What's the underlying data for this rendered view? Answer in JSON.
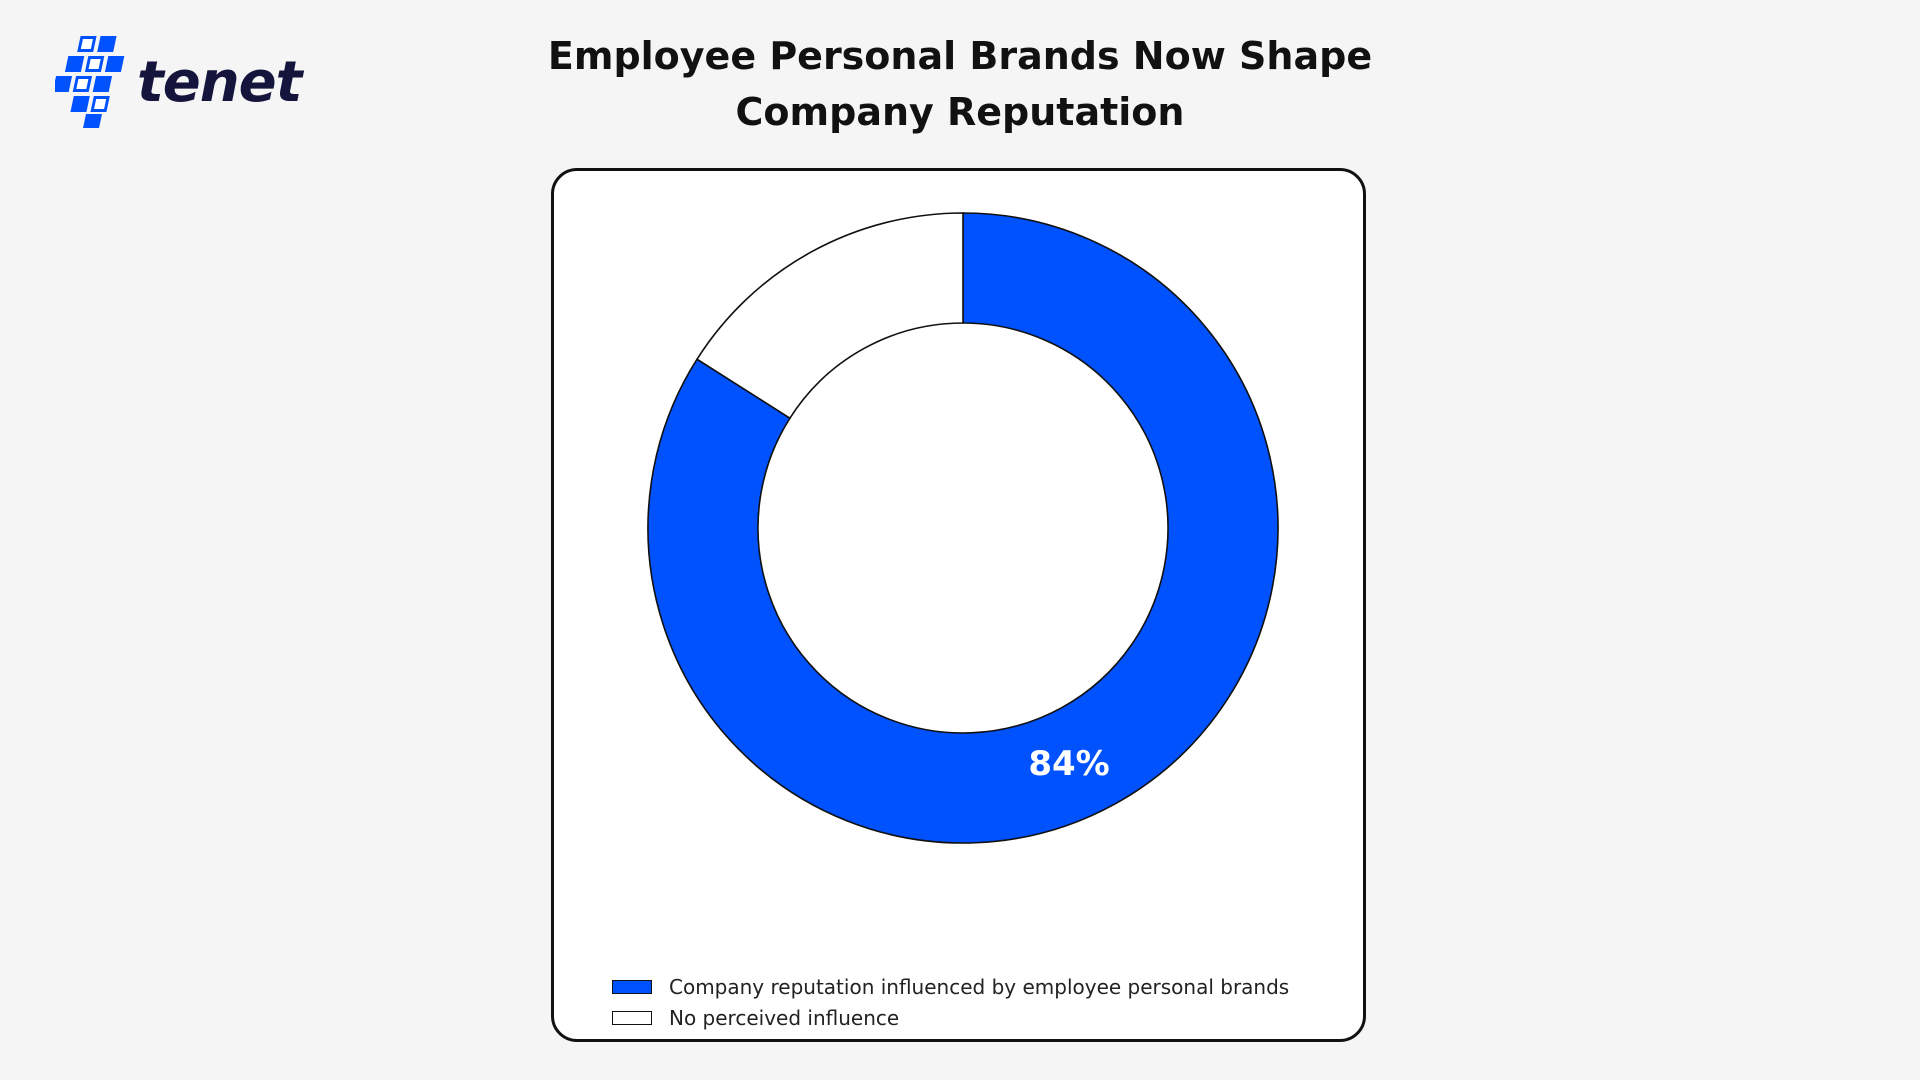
{
  "brand": {
    "logo_text": "tenet",
    "accent": "#0052ff"
  },
  "page": {
    "title": "Employee Personal Brands Now Shape Company Reputation"
  },
  "chart_data": {
    "type": "pie",
    "style": "donut",
    "title": "Employee Personal Brands Now Shape Company Reputation",
    "categories": [
      "Company reputation influenced by employee personal brands",
      "No perceived influence"
    ],
    "values": [
      84,
      16
    ],
    "unit": "%",
    "colors": [
      "#0052ff",
      "#ffffff"
    ],
    "data_labels": [
      "84%",
      ""
    ],
    "legend_position": "lower-left",
    "start_angle": "12 o'clock",
    "direction": "clockwise"
  }
}
